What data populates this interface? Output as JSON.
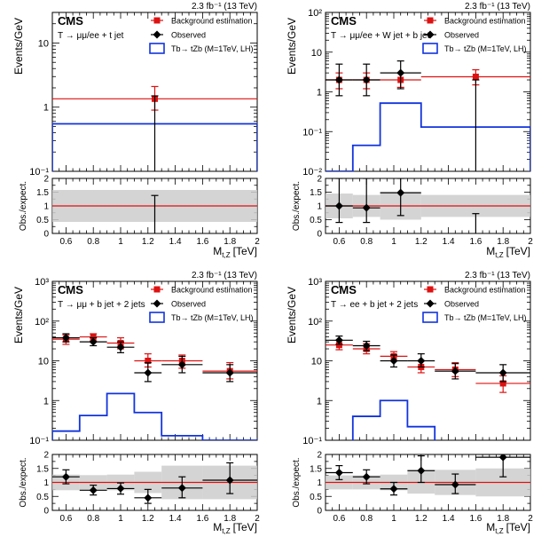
{
  "colors": {
    "background": "#dd1111",
    "observed": "#000000",
    "signal": "#1133dd",
    "ratio_line": "#dd1111",
    "uncertainty_band": "#cccccc"
  },
  "legend_entries": [
    "Background estimation",
    "Observed",
    "Tb→ tZb (M=1TeV, LH)"
  ],
  "chart_data": [
    {
      "type": "line",
      "id": "p1",
      "lumi": "2.3 fb⁻¹ (13 TeV)",
      "experiment": "CMS",
      "category": "T → μμ/ee + t jet",
      "ylabel": "Events/GeV",
      "xlabel": "M",
      "xlabel_sub": "t,Z",
      "xlabel_unit": "[TeV]",
      "ratio_ylabel": "Obs./expect.",
      "ylog": true,
      "ylim": [
        0.1,
        30
      ],
      "xlim": [
        0.5,
        2.0
      ],
      "yticks": [
        0.1,
        1,
        10
      ],
      "ytick_labels": [
        "10⁻¹",
        "1",
        "10"
      ],
      "xticks": [
        0.6,
        0.8,
        1.0,
        1.2,
        1.4,
        1.6,
        1.8,
        2.0
      ],
      "xtick_labels": [
        "0.6",
        "0.8",
        "1",
        "1.2",
        "1.4",
        "1.6",
        "1.8",
        "2"
      ],
      "ratio_ylim": [
        0,
        2
      ],
      "ratio_yticks": [
        0,
        0.5,
        1,
        1.5,
        2
      ],
      "ratio_ytick_labels": [
        "0",
        "0.5",
        "1",
        "1.5",
        "2"
      ],
      "background": [
        {
          "x": 1.25,
          "xlo": 0.5,
          "xhi": 2.0,
          "y": 1.35,
          "ylo": 0.9,
          "yhi": 2.1
        }
      ],
      "observed": [
        {
          "x": 1.25,
          "y": 0,
          "ylo": 0,
          "yhi": 1.5
        }
      ],
      "signal_bins": [
        0.5,
        2.0
      ],
      "signal_values": [
        0.55
      ],
      "ratio_points": [
        {
          "x": 1.25,
          "y": 0,
          "ylo": 0,
          "yhi": 1.38
        }
      ],
      "ratio_band": [
        {
          "x0": 0.5,
          "x1": 2.0,
          "lo": 0.42,
          "hi": 1.58
        }
      ]
    },
    {
      "type": "line",
      "id": "p2",
      "lumi": "2.3 fb⁻¹ (13 TeV)",
      "experiment": "CMS",
      "category": "T → μμ/ee + W jet + b jet",
      "ylabel": "Events/GeV",
      "xlabel": "M",
      "xlabel_sub": "t,Z",
      "xlabel_unit": "[TeV]",
      "ratio_ylabel": "Obs./expect.",
      "ylog": true,
      "ylim": [
        0.01,
        100
      ],
      "xlim": [
        0.5,
        2.0
      ],
      "yticks": [
        0.01,
        0.1,
        1,
        10,
        100
      ],
      "ytick_labels": [
        "10⁻²",
        "10⁻¹",
        "1",
        "10",
        "10²"
      ],
      "xticks": [
        0.6,
        0.8,
        1.0,
        1.2,
        1.4,
        1.6,
        1.8,
        2.0
      ],
      "xtick_labels": [
        "0.6",
        "0.8",
        "1",
        "1.2",
        "1.4",
        "1.6",
        "1.8",
        "2"
      ],
      "ratio_ylim": [
        0,
        2
      ],
      "ratio_yticks": [
        0,
        0.5,
        1,
        1.5,
        2
      ],
      "ratio_ytick_labels": [
        "0",
        "0.5",
        "1",
        "1.5",
        "2"
      ],
      "background": [
        {
          "x": 0.6,
          "xlo": 0.5,
          "xhi": 0.7,
          "y": 2.0,
          "ylo": 1.2,
          "yhi": 3.0
        },
        {
          "x": 0.8,
          "xlo": 0.7,
          "xhi": 0.9,
          "y": 2.0,
          "ylo": 1.2,
          "yhi": 3.0
        },
        {
          "x": 1.05,
          "xlo": 0.9,
          "xhi": 1.2,
          "y": 2.0,
          "ylo": 1.3,
          "yhi": 3.0
        },
        {
          "x": 1.6,
          "xlo": 1.2,
          "xhi": 2.0,
          "y": 2.4,
          "ylo": 1.5,
          "yhi": 3.6
        }
      ],
      "observed": [
        {
          "x": 0.6,
          "xlo": 0.5,
          "xhi": 0.7,
          "y": 2.0,
          "ylo": 0.8,
          "yhi": 5.0
        },
        {
          "x": 0.8,
          "xlo": 0.7,
          "xhi": 0.9,
          "y": 2.0,
          "ylo": 0.8,
          "yhi": 5.0
        },
        {
          "x": 1.05,
          "xlo": 0.9,
          "xhi": 1.2,
          "y": 3.0,
          "ylo": 1.2,
          "yhi": 6.0
        },
        {
          "x": 1.6,
          "y": 0,
          "ylo": 0,
          "yhi": 2.0
        }
      ],
      "signal_bins": [
        0.5,
        0.7,
        0.9,
        1.2,
        2.0
      ],
      "signal_values": [
        0.002,
        0.045,
        0.52,
        0.13
      ],
      "ratio_points": [
        {
          "x": 0.6,
          "xlo": 0.5,
          "xhi": 0.7,
          "y": 1.0,
          "ylo": 0.4,
          "yhi": 2.0
        },
        {
          "x": 0.8,
          "xlo": 0.7,
          "xhi": 0.9,
          "y": 0.93,
          "ylo": 0.4,
          "yhi": 2.0
        },
        {
          "x": 1.05,
          "xlo": 0.9,
          "xhi": 1.2,
          "y": 1.48,
          "ylo": 0.65,
          "yhi": 2.0
        },
        {
          "x": 1.6,
          "y": 0,
          "ylo": 0,
          "yhi": 0.72
        }
      ],
      "ratio_band": [
        {
          "x0": 0.5,
          "x1": 0.7,
          "lo": 0.55,
          "hi": 1.45
        },
        {
          "x0": 0.7,
          "x1": 0.9,
          "lo": 0.6,
          "hi": 1.4
        },
        {
          "x0": 0.9,
          "x1": 1.2,
          "lo": 0.5,
          "hi": 1.5
        },
        {
          "x0": 1.2,
          "x1": 2.0,
          "lo": 0.6,
          "hi": 1.4
        }
      ]
    },
    {
      "type": "line",
      "id": "p3",
      "lumi": "2.3 fb⁻¹ (13 TeV)",
      "experiment": "CMS",
      "category": "T → μμ + b jet + 2 jets",
      "ylabel": "Events/GeV",
      "xlabel": "M",
      "xlabel_sub": "t,Z",
      "xlabel_unit": "[TeV]",
      "ratio_ylabel": "Obs./expect.",
      "ylog": true,
      "ylim": [
        0.1,
        1000
      ],
      "xlim": [
        0.5,
        2.0
      ],
      "yticks": [
        0.1,
        1,
        10,
        100,
        1000
      ],
      "ytick_labels": [
        "10⁻¹",
        "1",
        "10",
        "10²",
        "10³"
      ],
      "xticks": [
        0.6,
        0.8,
        1.0,
        1.2,
        1.4,
        1.6,
        1.8,
        2.0
      ],
      "xtick_labels": [
        "0.6",
        "0.8",
        "1",
        "1.2",
        "1.4",
        "1.6",
        "1.8",
        "2"
      ],
      "ratio_ylim": [
        0,
        2
      ],
      "ratio_yticks": [
        0,
        0.5,
        1,
        1.5,
        2
      ],
      "ratio_ytick_labels": [
        "0",
        "0.5",
        "1",
        "1.5",
        "2"
      ],
      "background": [
        {
          "x": 0.6,
          "xlo": 0.5,
          "xhi": 0.7,
          "y": 35,
          "ylo": 26,
          "yhi": 45
        },
        {
          "x": 0.8,
          "xlo": 0.7,
          "xhi": 0.9,
          "y": 40,
          "ylo": 32,
          "yhi": 48
        },
        {
          "x": 1.0,
          "xlo": 0.9,
          "xhi": 1.1,
          "y": 28,
          "ylo": 20,
          "yhi": 38
        },
        {
          "x": 1.2,
          "xlo": 1.1,
          "xhi": 1.3,
          "y": 10,
          "ylo": 7,
          "yhi": 15
        },
        {
          "x": 1.45,
          "xlo": 1.3,
          "xhi": 1.6,
          "y": 10,
          "ylo": 6.5,
          "yhi": 14
        },
        {
          "x": 1.8,
          "xlo": 1.6,
          "xhi": 2.0,
          "y": 5.5,
          "ylo": 3.5,
          "yhi": 9
        }
      ],
      "observed": [
        {
          "x": 0.6,
          "xlo": 0.5,
          "xhi": 0.7,
          "y": 38,
          "ylo": 30,
          "yhi": 48
        },
        {
          "x": 0.8,
          "xlo": 0.7,
          "xhi": 0.9,
          "y": 30,
          "ylo": 24,
          "yhi": 38
        },
        {
          "x": 1.0,
          "xlo": 0.9,
          "xhi": 1.1,
          "y": 22,
          "ylo": 16,
          "yhi": 30
        },
        {
          "x": 1.2,
          "xlo": 1.1,
          "xhi": 1.3,
          "y": 5,
          "ylo": 3,
          "yhi": 9
        },
        {
          "x": 1.45,
          "xlo": 1.3,
          "xhi": 1.6,
          "y": 8,
          "ylo": 5,
          "yhi": 13
        },
        {
          "x": 1.8,
          "xlo": 1.6,
          "xhi": 2.0,
          "y": 5,
          "ylo": 3,
          "yhi": 8
        }
      ],
      "signal_bins": [
        0.5,
        0.7,
        0.9,
        1.1,
        1.3,
        1.6,
        2.0
      ],
      "signal_values": [
        0.17,
        0.42,
        1.5,
        0.5,
        0.13,
        0.05
      ],
      "ratio_points": [
        {
          "x": 0.6,
          "xlo": 0.5,
          "xhi": 0.7,
          "y": 1.2,
          "ylo": 0.95,
          "yhi": 1.45
        },
        {
          "x": 0.8,
          "xlo": 0.7,
          "xhi": 0.9,
          "y": 0.72,
          "ylo": 0.55,
          "yhi": 0.9
        },
        {
          "x": 1.0,
          "xlo": 0.9,
          "xhi": 1.1,
          "y": 0.78,
          "ylo": 0.58,
          "yhi": 0.98
        },
        {
          "x": 1.2,
          "xlo": 1.1,
          "xhi": 1.3,
          "y": 0.45,
          "ylo": 0.25,
          "yhi": 0.75
        },
        {
          "x": 1.45,
          "xlo": 1.3,
          "xhi": 1.6,
          "y": 0.8,
          "ylo": 0.45,
          "yhi": 1.2
        },
        {
          "x": 1.8,
          "xlo": 1.6,
          "xhi": 2.0,
          "y": 1.08,
          "ylo": 0.6,
          "yhi": 1.7
        }
      ],
      "ratio_band": [
        {
          "x0": 0.5,
          "x1": 0.7,
          "lo": 0.72,
          "hi": 1.28
        },
        {
          "x0": 0.7,
          "x1": 0.9,
          "lo": 0.74,
          "hi": 1.26
        },
        {
          "x0": 0.9,
          "x1": 1.1,
          "lo": 0.72,
          "hi": 1.28
        },
        {
          "x0": 1.1,
          "x1": 1.3,
          "lo": 0.62,
          "hi": 1.38
        },
        {
          "x0": 1.3,
          "x1": 1.6,
          "lo": 0.4,
          "hi": 1.6
        },
        {
          "x0": 1.6,
          "x1": 2.0,
          "lo": 0.4,
          "hi": 1.6
        }
      ]
    },
    {
      "type": "line",
      "id": "p4",
      "lumi": "2.3 fb⁻¹ (13 TeV)",
      "experiment": "CMS",
      "category": "T → ee + b jet + 2 jets",
      "ylabel": "Events/GeV",
      "xlabel": "M",
      "xlabel_sub": "t,Z",
      "xlabel_unit": "[TeV]",
      "ratio_ylabel": "Obs./expect.",
      "ylog": true,
      "ylim": [
        0.1,
        1000
      ],
      "xlim": [
        0.5,
        2.0
      ],
      "yticks": [
        0.1,
        1,
        10,
        100,
        1000
      ],
      "ytick_labels": [
        "10⁻¹",
        "1",
        "10",
        "10²",
        "10³"
      ],
      "xticks": [
        0.6,
        0.8,
        1.0,
        1.2,
        1.4,
        1.6,
        1.8,
        2.0
      ],
      "xtick_labels": [
        "0.6",
        "0.8",
        "1",
        "1.2",
        "1.4",
        "1.6",
        "1.8",
        "2"
      ],
      "ratio_ylim": [
        0,
        2
      ],
      "ratio_yticks": [
        0,
        0.5,
        1,
        1.5,
        2
      ],
      "ratio_ytick_labels": [
        "0",
        "0.5",
        "1",
        "1.5",
        "2"
      ],
      "background": [
        {
          "x": 0.6,
          "xlo": 0.5,
          "xhi": 0.7,
          "y": 25,
          "ylo": 19,
          "yhi": 33
        },
        {
          "x": 0.8,
          "xlo": 0.7,
          "xhi": 0.9,
          "y": 20,
          "ylo": 15,
          "yhi": 27
        },
        {
          "x": 1.0,
          "xlo": 0.9,
          "xhi": 1.1,
          "y": 13,
          "ylo": 10,
          "yhi": 17
        },
        {
          "x": 1.2,
          "xlo": 1.1,
          "xhi": 1.3,
          "y": 7,
          "ylo": 5,
          "yhi": 10
        },
        {
          "x": 1.45,
          "xlo": 1.3,
          "xhi": 1.6,
          "y": 6,
          "ylo": 4,
          "yhi": 9
        },
        {
          "x": 1.8,
          "xlo": 1.6,
          "xhi": 2.0,
          "y": 2.7,
          "ylo": 1.6,
          "yhi": 4.2
        }
      ],
      "observed": [
        {
          "x": 0.6,
          "xlo": 0.5,
          "xhi": 0.7,
          "y": 33,
          "ylo": 26,
          "yhi": 42
        },
        {
          "x": 0.8,
          "xlo": 0.7,
          "xhi": 0.9,
          "y": 24,
          "ylo": 18,
          "yhi": 31
        },
        {
          "x": 1.0,
          "xlo": 0.9,
          "xhi": 1.1,
          "y": 10,
          "ylo": 7,
          "yhi": 14
        },
        {
          "x": 1.2,
          "xlo": 1.1,
          "xhi": 1.3,
          "y": 10,
          "ylo": 7,
          "yhi": 15
        },
        {
          "x": 1.45,
          "xlo": 1.3,
          "xhi": 1.6,
          "y": 5.5,
          "ylo": 3.5,
          "yhi": 8.5
        },
        {
          "x": 1.8,
          "xlo": 1.6,
          "xhi": 2.0,
          "y": 5,
          "ylo": 3,
          "yhi": 8
        }
      ],
      "signal_bins": [
        0.7,
        0.9,
        1.1,
        1.3
      ],
      "signal_values": [
        0.4,
        1.0,
        0.22
      ],
      "ratio_points": [
        {
          "x": 0.6,
          "xlo": 0.5,
          "xhi": 0.7,
          "y": 1.35,
          "ylo": 1.1,
          "yhi": 1.6
        },
        {
          "x": 0.8,
          "xlo": 0.7,
          "xhi": 0.9,
          "y": 1.2,
          "ylo": 0.95,
          "yhi": 1.45
        },
        {
          "x": 1.0,
          "xlo": 0.9,
          "xhi": 1.1,
          "y": 0.77,
          "ylo": 0.55,
          "yhi": 1.0
        },
        {
          "x": 1.2,
          "xlo": 1.1,
          "xhi": 1.3,
          "y": 1.42,
          "ylo": 1.0,
          "yhi": 1.95
        },
        {
          "x": 1.45,
          "xlo": 1.3,
          "xhi": 1.6,
          "y": 0.92,
          "ylo": 0.6,
          "yhi": 1.3
        },
        {
          "x": 1.8,
          "xlo": 1.6,
          "xhi": 2.0,
          "y": 1.9,
          "ylo": 1.2,
          "yhi": 2.0
        }
      ],
      "ratio_band": [
        {
          "x0": 0.5,
          "x1": 0.7,
          "lo": 0.75,
          "hi": 1.25
        },
        {
          "x0": 0.7,
          "x1": 0.9,
          "lo": 0.75,
          "hi": 1.25
        },
        {
          "x0": 0.9,
          "x1": 1.1,
          "lo": 0.72,
          "hi": 1.28
        },
        {
          "x0": 1.1,
          "x1": 1.3,
          "lo": 0.6,
          "hi": 1.4
        },
        {
          "x0": 1.3,
          "x1": 1.6,
          "lo": 0.55,
          "hi": 1.45
        },
        {
          "x0": 1.6,
          "x1": 2.0,
          "lo": 0.5,
          "hi": 1.5
        }
      ]
    }
  ]
}
